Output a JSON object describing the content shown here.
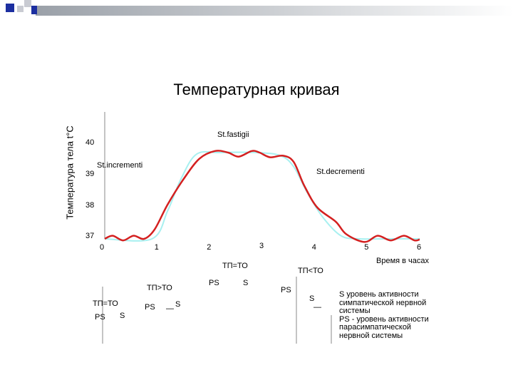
{
  "title": "Температурная кривая",
  "y_axis_label": "Температура тела t°С",
  "x_axis_label": "Время в часах",
  "stages": {
    "increment": "St.incrementi",
    "fastigii": "St.fastigii",
    "decrement": "St.decrementi"
  },
  "balance": {
    "stage1": "ТП=ТО",
    "stage2": "ТП>ТО",
    "stage3": "ТП=ТО",
    "stage4": "ТП<ТО"
  },
  "activity": {
    "ps": "PS",
    "s": "S",
    "dash": "—"
  },
  "legend": [
    "S  уровень активности",
    "симпатической нервной",
    "системы",
    "PS - уровень активности",
    "парасимпатической",
    "нервной системы"
  ],
  "colors": {
    "primary_curve": "#d42020",
    "secondary_curve": "#a8f0f0",
    "deco_blue": "#1c2fa0"
  },
  "chart_data": {
    "type": "line",
    "title": "Температурная кривая",
    "xlabel": "Время в часах",
    "ylabel": "Температура тела t°С",
    "x_ticks": [
      "0",
      "1",
      "2",
      "3",
      "4",
      "5",
      "6"
    ],
    "y_ticks": [
      "37",
      "38",
      "39",
      "40"
    ],
    "xlim": [
      0,
      6
    ],
    "ylim": [
      37,
      40
    ],
    "series": [
      {
        "color": "#d42020",
        "x": [
          0,
          0.15,
          0.35,
          0.55,
          0.75,
          0.95,
          1.2,
          1.5,
          1.8,
          2.1,
          2.35,
          2.55,
          2.8,
          2.95,
          3.15,
          3.4,
          3.6,
          3.8,
          4.05,
          4.4,
          4.6,
          4.95,
          5.2,
          5.45,
          5.7,
          5.9,
          6
        ],
        "values": [
          37.0,
          37.1,
          36.95,
          37.1,
          37.0,
          37.3,
          38.1,
          38.9,
          39.55,
          39.8,
          39.75,
          39.62,
          39.8,
          39.75,
          39.6,
          39.65,
          39.45,
          38.7,
          38.0,
          37.55,
          37.15,
          36.9,
          37.1,
          36.95,
          37.1,
          36.95,
          36.98
        ]
      },
      {
        "color": "#a8f0f0",
        "x": [
          0,
          0.9,
          1.2,
          1.45,
          1.75,
          2.2,
          2.9,
          3.35,
          3.6,
          3.85,
          4.15,
          4.5,
          4.85,
          5.4,
          6
        ],
        "values": [
          37.0,
          37.0,
          37.9,
          38.9,
          39.7,
          39.75,
          39.75,
          39.65,
          39.3,
          38.5,
          37.7,
          37.1,
          37.0,
          37.0,
          37.0
        ]
      }
    ]
  }
}
